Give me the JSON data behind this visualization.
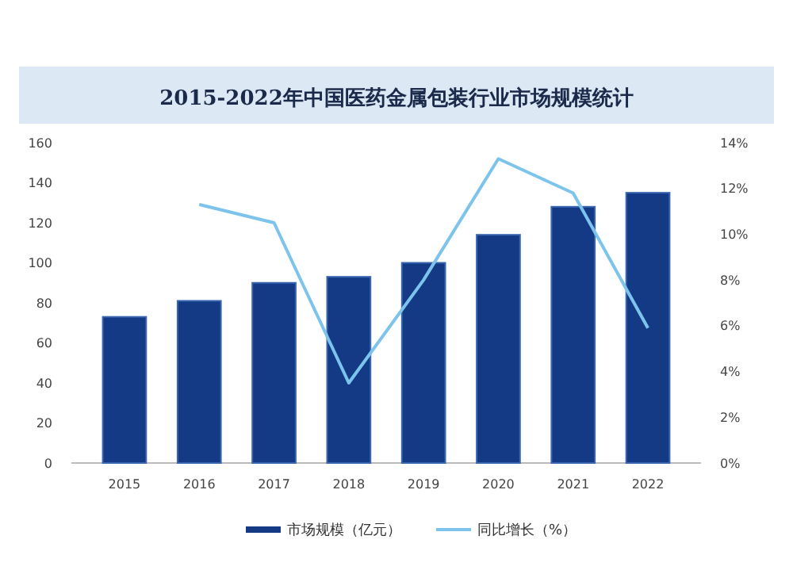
{
  "chart_data": {
    "type": "bar",
    "title": "2015-2022年中国医药金属包装行业市场规模统计",
    "categories": [
      "2015",
      "2016",
      "2017",
      "2018",
      "2019",
      "2020",
      "2021",
      "2022"
    ],
    "series": [
      {
        "name": "市场规模（亿元）",
        "color": "#143a86",
        "values": [
          73,
          81,
          90,
          93,
          100,
          114,
          128,
          135
        ]
      },
      {
        "name": "同比增长（%）",
        "type": "line",
        "axis": "y2",
        "color": "#7cc4ec",
        "values": [
          null,
          11.3,
          10.5,
          3.5,
          8,
          13.3,
          11.8,
          5.9
        ]
      }
    ],
    "ylim": [
      0,
      160
    ],
    "yticks": [
      0,
      20,
      40,
      60,
      80,
      100,
      120,
      140,
      160
    ],
    "y2lim": [
      0,
      14
    ],
    "y2ticks": [
      {
        "value": 0,
        "label": "0%"
      },
      {
        "value": 2,
        "label": "2%"
      },
      {
        "value": 4,
        "label": "4%"
      },
      {
        "value": 6,
        "label": "6%"
      },
      {
        "value": 8,
        "label": "8%"
      },
      {
        "value": 10,
        "label": "10%"
      },
      {
        "value": 12,
        "label": "12%"
      },
      {
        "value": 14,
        "label": "14%"
      }
    ],
    "grid": false,
    "legend": "bottom",
    "marker": "none",
    "line_style": "solid"
  }
}
